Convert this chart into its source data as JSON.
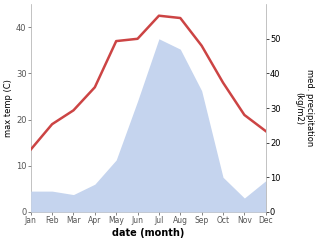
{
  "months": [
    "Jan",
    "Feb",
    "Mar",
    "Apr",
    "May",
    "Jun",
    "Jul",
    "Aug",
    "Sep",
    "Oct",
    "Nov",
    "Dec"
  ],
  "temperature": [
    13.5,
    19.0,
    22.0,
    27.0,
    37.0,
    37.5,
    42.5,
    42.0,
    36.0,
    28.0,
    21.0,
    17.5
  ],
  "precipitation": [
    6,
    6,
    5,
    8,
    15,
    32,
    50,
    47,
    35,
    10,
    4,
    9
  ],
  "temp_color": "#cc4444",
  "precip_fill_color": "#c5d4ee",
  "ylabel_left": "max temp (C)",
  "ylabel_right": "med. precipitation\n(kg/m2)",
  "xlabel": "date (month)",
  "ylim_left": [
    0,
    45
  ],
  "ylim_right": [
    0,
    60
  ],
  "yticks_left": [
    0,
    10,
    20,
    30,
    40
  ],
  "yticks_right": [
    0,
    10,
    20,
    30,
    40,
    50
  ],
  "background_color": "#ffffff",
  "line_width": 1.8
}
